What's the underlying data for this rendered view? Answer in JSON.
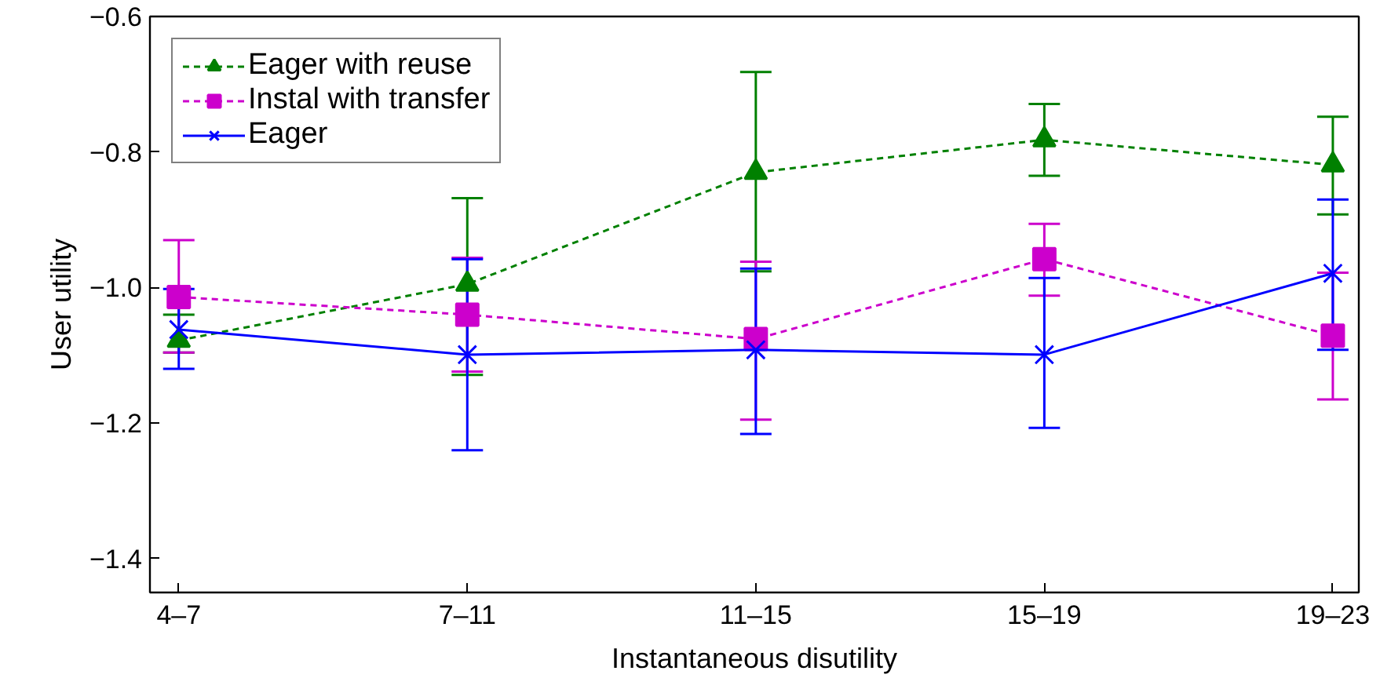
{
  "chart_data": {
    "type": "line",
    "xlabel": "Instantaneous disutility",
    "ylabel": "User utility",
    "categories": [
      "4–7",
      "7–11",
      "11–15",
      "15–19",
      "19–23"
    ],
    "ylim": [
      -1.45,
      -0.6
    ],
    "yticks": [
      {
        "value": -0.6,
        "label": "−0.6"
      },
      {
        "value": -0.8,
        "label": "−0.8"
      },
      {
        "value": -1.0,
        "label": "−1.0"
      },
      {
        "value": -1.2,
        "label": "−1.2"
      },
      {
        "value": -1.4,
        "label": "−1.4"
      }
    ],
    "grid": false,
    "legend": "top left",
    "series": [
      {
        "name": "Eager with reuse",
        "color": "#008000",
        "marker": "triangle",
        "line_style": "dashed",
        "values": [
          -1.078,
          -0.995,
          -0.83,
          -0.782,
          -0.819
        ],
        "errors": [
          [
            -1.096,
            -1.04
          ],
          [
            -1.129,
            -0.868
          ],
          [
            -0.976,
            -0.682
          ],
          [
            -0.835,
            -0.729
          ],
          [
            -0.892,
            -0.748
          ]
        ]
      },
      {
        "name": "Instal with transfer",
        "color": "#cc00cc",
        "marker": "square",
        "line_style": "dashed",
        "values": [
          -1.014,
          -1.04,
          -1.076,
          -0.958,
          -1.071
        ],
        "errors": [
          [
            -1.096,
            -0.93
          ],
          [
            -1.124,
            -0.956
          ],
          [
            -1.195,
            -0.962
          ],
          [
            -1.012,
            -0.906
          ],
          [
            -1.165,
            -0.978
          ]
        ]
      },
      {
        "name": "Eager",
        "color": "#0000ff",
        "marker": "cross",
        "line_style": "solid",
        "values": [
          -1.062,
          -1.099,
          -1.092,
          -1.099,
          -0.979
        ],
        "errors": [
          [
            -1.12,
            -1.002
          ],
          [
            -1.24,
            -0.958
          ],
          [
            -1.216,
            -0.972
          ],
          [
            -1.207,
            -0.986
          ],
          [
            -1.092,
            -0.87
          ]
        ]
      }
    ]
  }
}
